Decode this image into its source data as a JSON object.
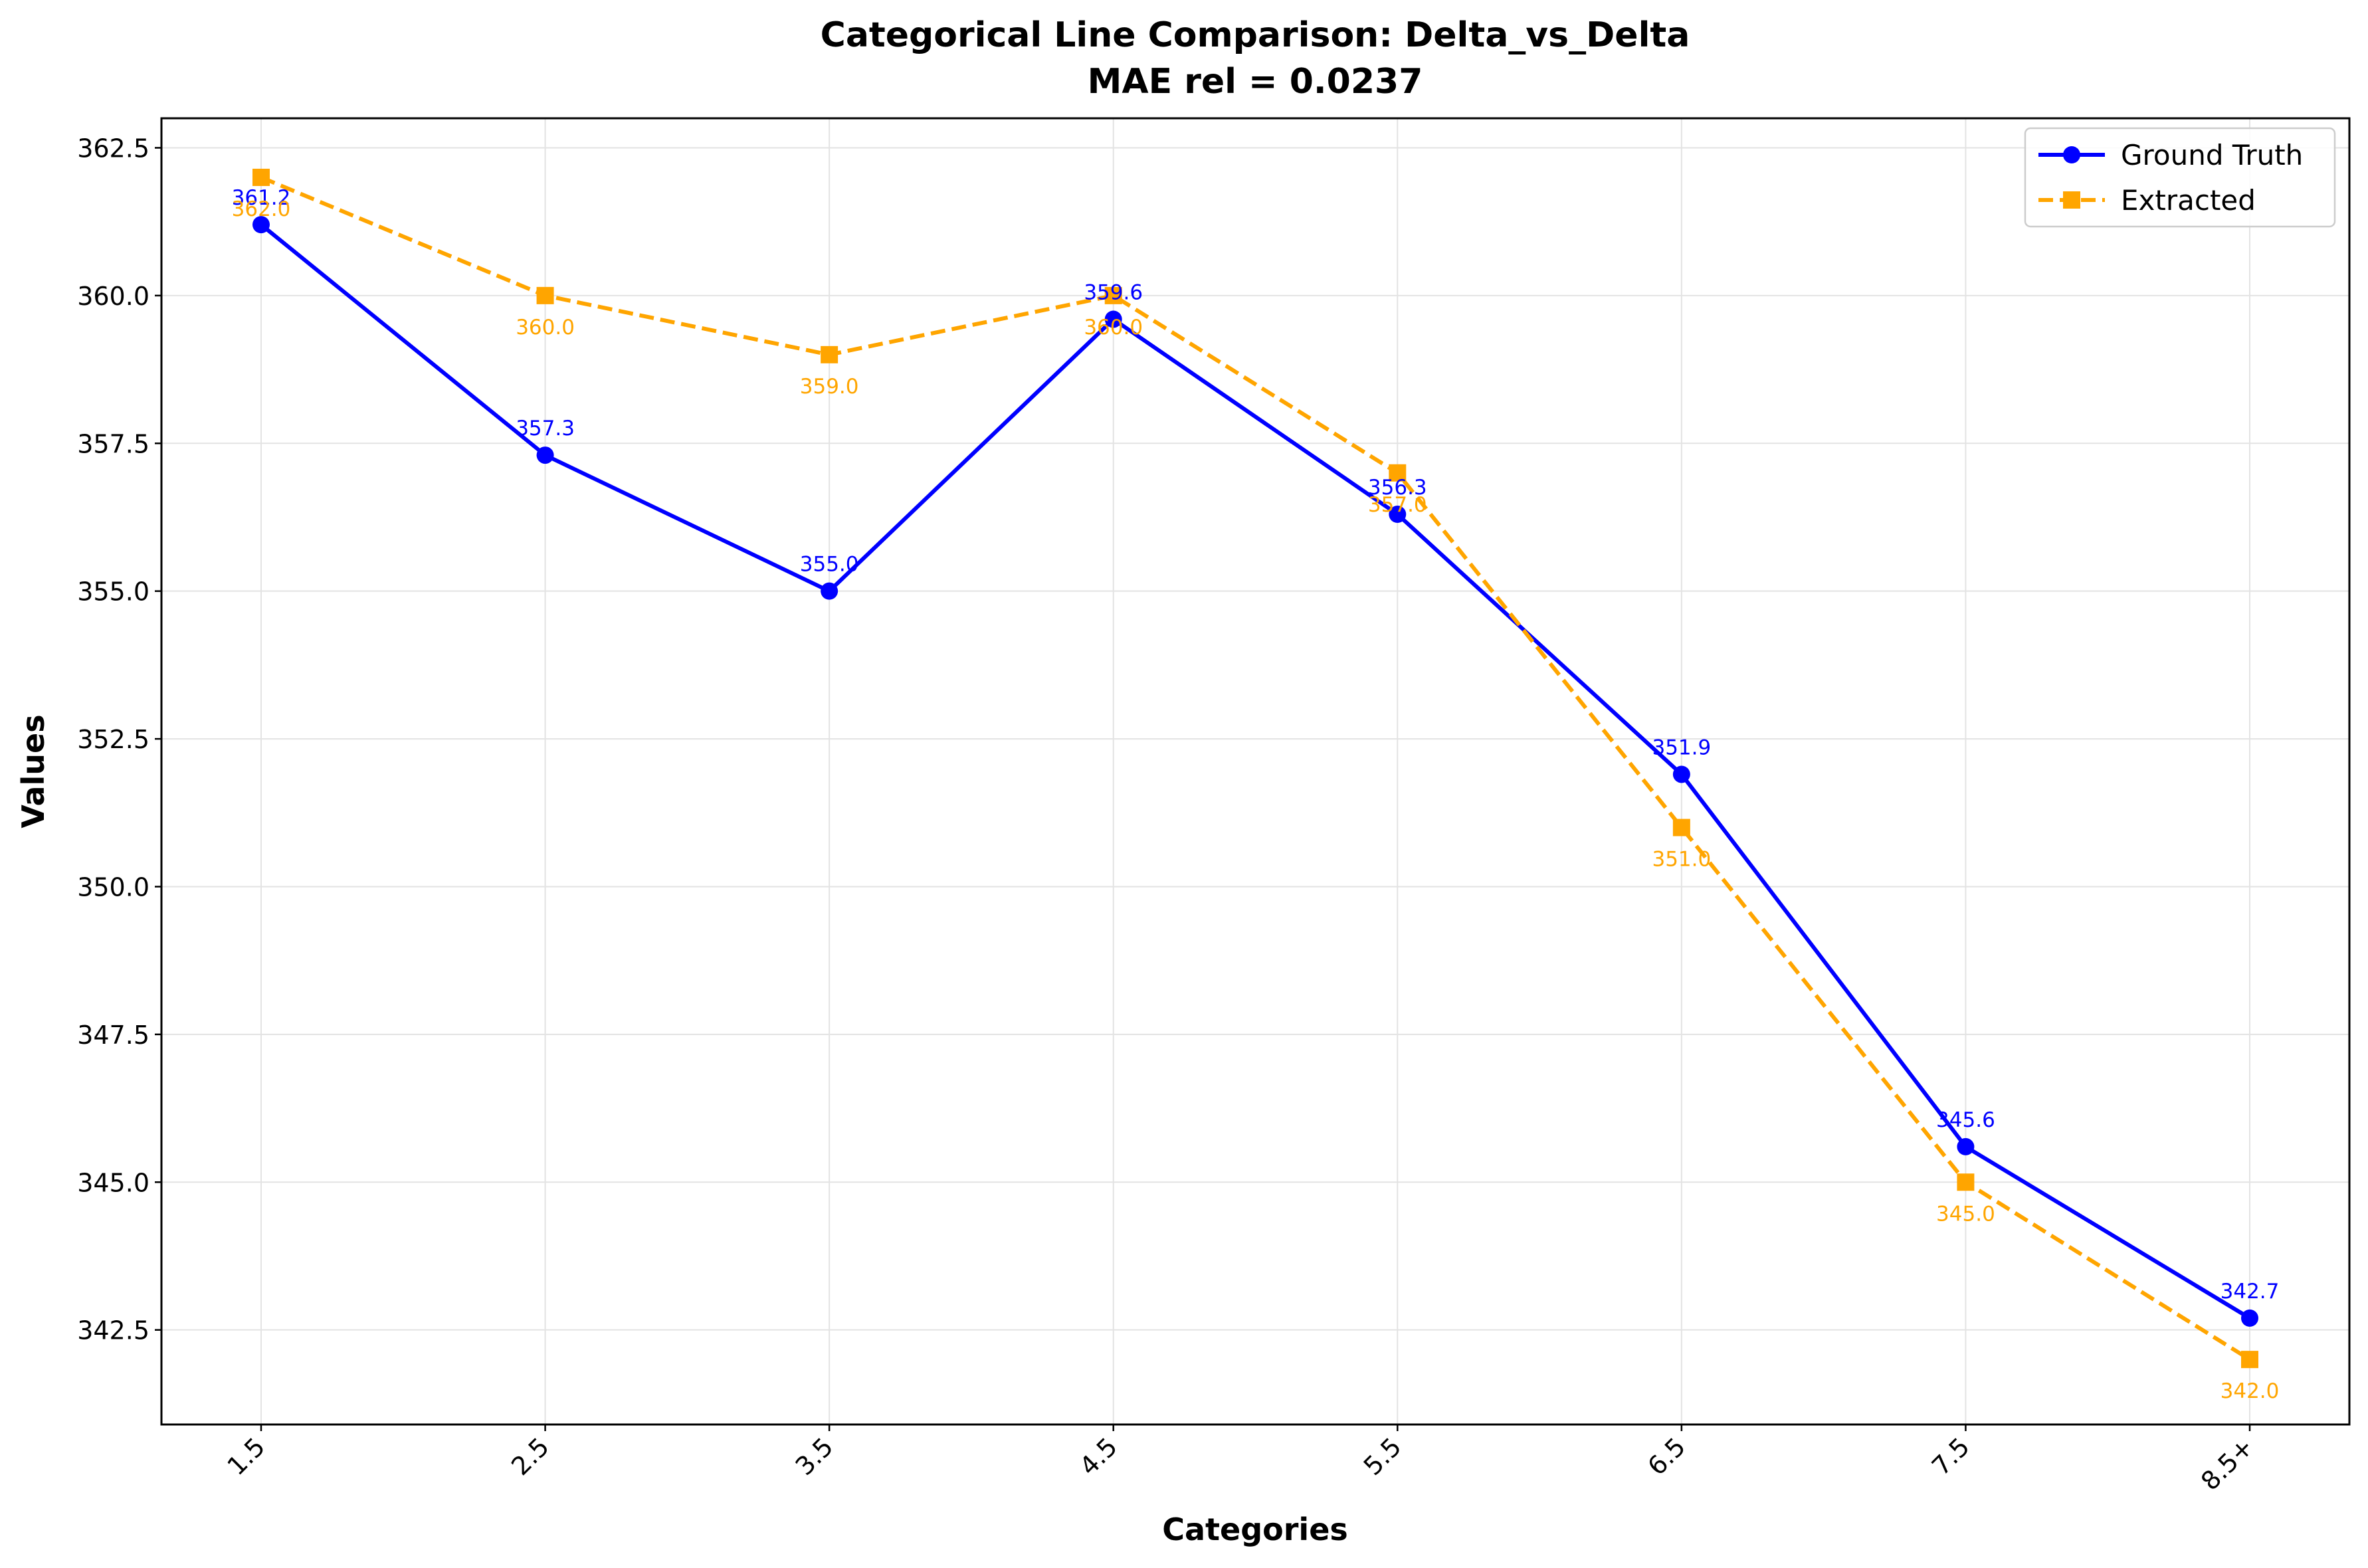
{
  "chart_data": {
    "type": "line",
    "title": "Categorical Line Comparison: Delta_vs_Delta",
    "subtitle": "MAE rel = 0.0237",
    "xlabel": "Categories",
    "ylabel": "Values",
    "categories": [
      "1.5",
      "2.5",
      "3.5",
      "4.5",
      "5.5",
      "6.5",
      "7.5",
      "8.5+"
    ],
    "ylim": [
      340.9,
      363.0
    ],
    "yticks": [
      "342.5",
      "345.0",
      "347.5",
      "350.0",
      "352.5",
      "355.0",
      "357.5",
      "360.0",
      "362.5"
    ],
    "grid": true,
    "legend_position": "top-right",
    "series": [
      {
        "name": "Ground Truth",
        "color": "#0000ff",
        "marker": "circle",
        "line_style": "solid",
        "values": [
          361.2,
          357.3,
          355.0,
          359.6,
          356.3,
          351.9,
          345.6,
          342.7
        ],
        "labels": [
          "361.2",
          "357.3",
          "355.0",
          "359.6",
          "356.3",
          "351.9",
          "345.6",
          "342.7"
        ]
      },
      {
        "name": "Extracted",
        "color": "#ffa500",
        "marker": "square",
        "line_style": "dashed",
        "values": [
          362.0,
          360.0,
          359.0,
          360.0,
          357.0,
          351.0,
          345.0,
          342.0
        ],
        "labels": [
          "362.0",
          "360.0",
          "359.0",
          "360.0",
          "357.0",
          "351.0",
          "345.0",
          "342.0"
        ]
      }
    ]
  }
}
